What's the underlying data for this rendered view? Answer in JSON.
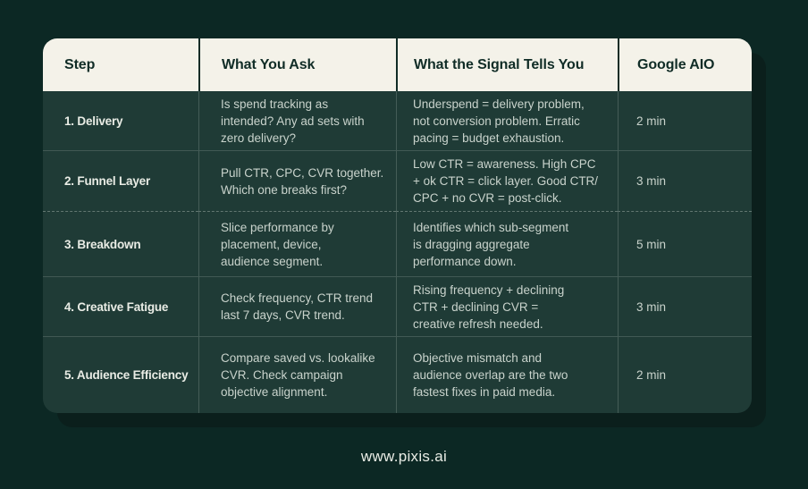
{
  "chart_data": {
    "type": "table",
    "columns": [
      "Step",
      "What You Ask",
      "What the Signal Tells You",
      "Google AIO"
    ],
    "rows": [
      {
        "step": "1. Delivery",
        "ask": "Is spend tracking as\nintended? Any ad sets with\nzero delivery?",
        "signal": "Underspend = delivery problem,\nnot conversion problem. Erratic\npacing = budget exhaustion.",
        "aio": "2 min"
      },
      {
        "step": "2. Funnel Layer",
        "ask": "Pull CTR, CPC, CVR together.\nWhich one breaks first?",
        "signal": "Low CTR = awareness. High CPC\n+ ok CTR = click layer. Good CTR/\nCPC + no CVR = post-click.",
        "aio": "3 min"
      },
      {
        "step": "3. Breakdown",
        "ask": "Slice performance by\nplacement, device,\naudience segment.",
        "signal": "Identifies which sub-segment\nis dragging aggregate\nperformance down.",
        "aio": "5 min"
      },
      {
        "step": "4. Creative Fatigue",
        "ask": "Check frequency, CTR trend\nlast 7 days, CVR trend.",
        "signal": "Rising frequency + declining\nCTR + declining CVR =\ncreative refresh needed.",
        "aio": "3 min"
      },
      {
        "step": "5. Audience Efficiency",
        "ask": "Compare saved vs. lookalike\nCVR. Check campaign\nobjective alignment.",
        "signal": "Objective mismatch and\naudience overlap are the two\nfastest fixes in paid media.",
        "aio": "2 min"
      }
    ],
    "layout_hints": "header row cream, body rows dark green, dashed divider between rows 2 and 3"
  },
  "footer": {
    "url_label": "www.pixis.ai"
  },
  "colors": {
    "page_bg": "#0C2824",
    "card_shadow": "#0B1F1C",
    "row_bg": "#1F3B36",
    "header_bg": "#F4F2E9",
    "header_text": "#102C26",
    "step_text": "#E9ECE5",
    "body_text": "#C9D3CC",
    "grid_line": "rgba(240,245,238,0.18)"
  }
}
